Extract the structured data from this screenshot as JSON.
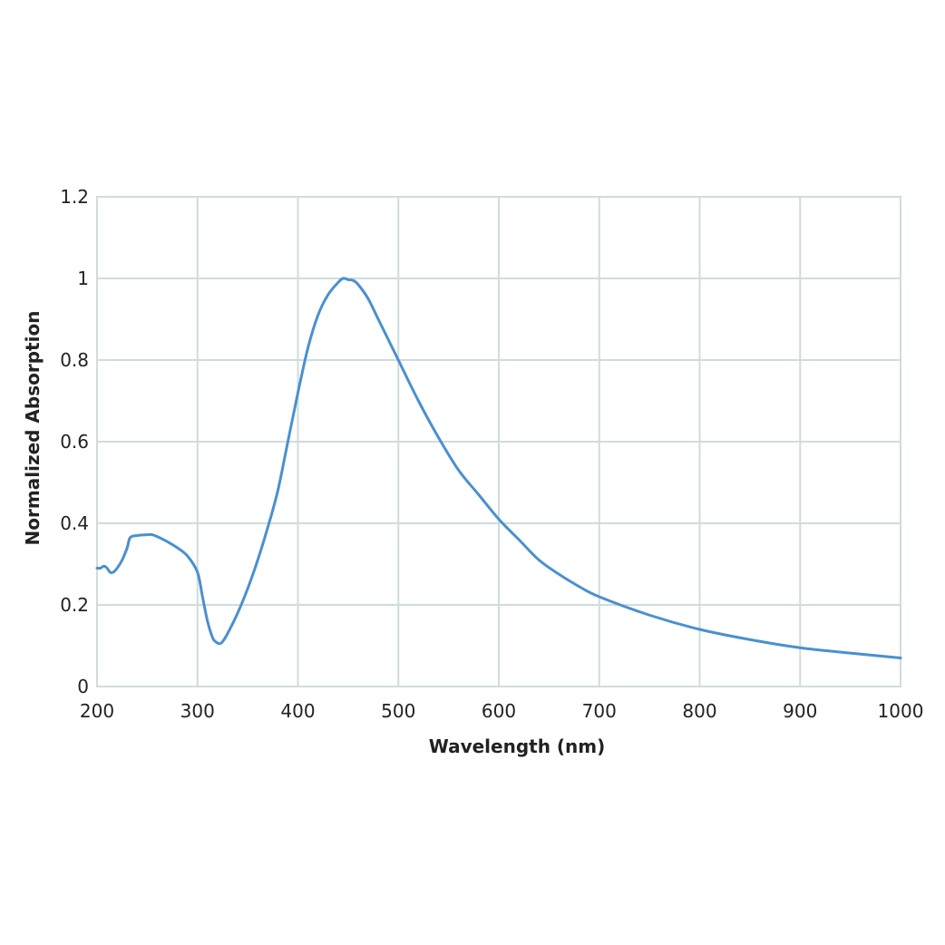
{
  "chart_data": {
    "type": "line",
    "title": "",
    "xlabel": "Wavelength (nm)",
    "ylabel": "Normalized Absorption",
    "xlim": [
      200,
      1000
    ],
    "ylim": [
      0,
      1.2
    ],
    "grid": true,
    "x_ticks": [
      200,
      300,
      400,
      500,
      600,
      700,
      800,
      900,
      1000
    ],
    "x_tick_labels": [
      "200",
      "300",
      "400",
      "500",
      "600",
      "700",
      "800",
      "900",
      "1000"
    ],
    "y_ticks": [
      0,
      0.2,
      0.4,
      0.6,
      0.8,
      1.0,
      1.2
    ],
    "y_tick_labels": [
      "0",
      "0.2",
      "0.4",
      "0.6",
      "0.8",
      "1",
      "1.2"
    ],
    "colors": {
      "line": "#4a90cf",
      "grid": "#cfdcdc",
      "text": "#222222"
    },
    "series": [
      {
        "x": [
          200,
          203,
          207,
          210,
          213,
          216,
          220,
          225,
          230,
          233,
          240,
          250,
          255,
          262,
          270,
          280,
          290,
          300,
          305,
          310,
          315,
          318,
          322,
          325,
          330,
          340,
          350,
          360,
          370,
          380,
          390,
          400,
          410,
          420,
          430,
          440,
          445,
          450,
          455,
          460,
          470,
          480,
          490,
          500,
          520,
          540,
          560,
          580,
          600,
          620,
          640,
          660,
          680,
          700,
          750,
          800,
          850,
          900,
          950,
          1000
        ],
        "y": [
          0.29,
          0.29,
          0.295,
          0.29,
          0.28,
          0.28,
          0.29,
          0.31,
          0.34,
          0.365,
          0.37,
          0.372,
          0.372,
          0.365,
          0.355,
          0.34,
          0.32,
          0.28,
          0.22,
          0.16,
          0.12,
          0.11,
          0.105,
          0.11,
          0.13,
          0.18,
          0.24,
          0.31,
          0.39,
          0.48,
          0.6,
          0.72,
          0.83,
          0.91,
          0.96,
          0.99,
          1.0,
          0.997,
          0.995,
          0.985,
          0.95,
          0.9,
          0.85,
          0.8,
          0.7,
          0.61,
          0.53,
          0.47,
          0.41,
          0.36,
          0.31,
          0.275,
          0.245,
          0.22,
          0.175,
          0.14,
          0.115,
          0.095,
          0.082,
          0.07
        ]
      }
    ]
  }
}
